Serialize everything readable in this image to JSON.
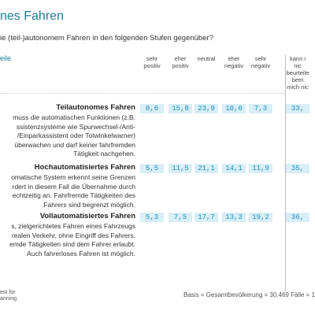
{
  "header": {
    "title": "nes Fahren",
    "question": "ie (teil-)autonomem Fahren in den folgenden Stufen gegenüber?"
  },
  "table": {
    "left_header": "eile",
    "columns": [
      [
        "sehr",
        "positiv"
      ],
      [
        "eher",
        "positiv"
      ],
      [
        "neutral"
      ],
      [
        "eher",
        "negativ"
      ],
      [
        "sehr",
        "negativ"
      ],
      [
        "kann i",
        "nic",
        "beurteile",
        "betri",
        "mich nic"
      ]
    ],
    "rows": [
      {
        "title": "Teilautonomes Fahren",
        "description": [
          "muss die automatischen Funktionen (z.B.",
          "ssistenzsysteme wie Spurwechsel-/Anti-",
          "/Einparkassistent oder Totwinkelwarner)",
          "überwachen und darf keiner fahrfremden",
          "Tätigkeit nachgehen."
        ],
        "values": [
          "8,6",
          "15,8",
          "23,9",
          "10,6",
          "7,3",
          "33,"
        ]
      },
      {
        "title": "Hochautomatisiertes Fahren",
        "description": [
          "omatische System erkennt seine Grenzen",
          "rdert in diesem Fall die Übernahme durch",
          "echtzeitig an. Fahrfremde Tätigkeiten des",
          "Fahrers sind begrenzt möglich."
        ],
        "values": [
          "5,5",
          "11,5",
          "21,1",
          "14,1",
          "11,9",
          "35,"
        ]
      },
      {
        "title": "Vollautomatisiertes Fahren",
        "description": [
          "s, zielgerichtetes Fahren eines Fahrzeugs",
          "realen Verkehr, ohne Eingriff des Fahrers.",
          "emde Tätigkeiten sind dem Fahrer erlaubt.",
          "Auch fahrerloses Fahren ist möglich."
        ],
        "values": [
          "5,3",
          "7,5",
          "17,7",
          "13,3",
          "19,2",
          "36,"
        ]
      }
    ]
  },
  "footer": {
    "logo_lines": [
      "est for",
      "anning."
    ],
    "basis": "Basis = Gesamtbevölkerung = 30.469 Fälle = 1"
  }
}
